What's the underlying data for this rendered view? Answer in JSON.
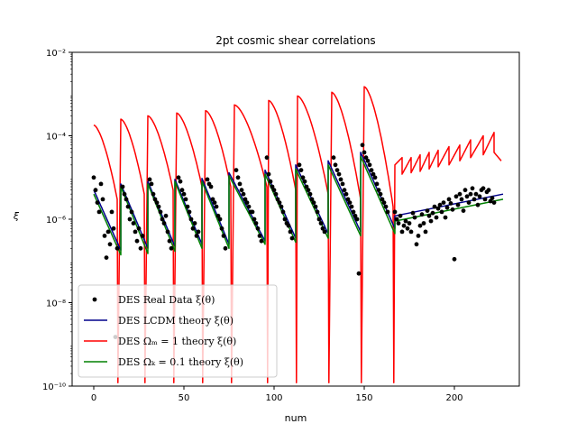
{
  "chart_data": {
    "type": "line",
    "title": "2pt cosmic shear correlations",
    "xlabel": "num",
    "ylabel": "ξ",
    "xlim": [
      -12,
      236
    ],
    "ylim": [
      1e-10,
      0.01
    ],
    "yscale": "log",
    "xticks": [
      0,
      50,
      100,
      150,
      200
    ],
    "yticks": [
      {
        "value": 1e-10,
        "label": "10⁻¹⁰"
      },
      {
        "value": 1e-08,
        "label": "10⁻⁸"
      },
      {
        "value": 1e-06,
        "label": "10⁻⁶"
      },
      {
        "value": 0.0001,
        "label": "10⁻⁴"
      },
      {
        "value": 0.01,
        "label": "10⁻²"
      }
    ],
    "legend_position": "lower-left",
    "grid": false,
    "colors": {
      "data": "#000000",
      "lcdm": "#00008b",
      "om1": "#ff0000",
      "ok": "#008000"
    },
    "legend": [
      {
        "key": "data",
        "label": "DES Real Data ξ(θ)",
        "marker": "dot"
      },
      {
        "key": "lcdm",
        "label": "DES LCDM theory ξ(θ)",
        "marker": "line"
      },
      {
        "key": "om1",
        "label": "DES Ωₘ = 1 theory ξ(θ)",
        "marker": "line"
      },
      {
        "key": "ok",
        "label": "DES Ωₖ = 0.1 theory ξ(θ)",
        "marker": "line"
      }
    ],
    "series": [
      {
        "key": "lcdm",
        "segments": [
          {
            "x": [
              0,
              15
            ],
            "y": [
              5e-06,
              1.8e-07
            ]
          },
          {
            "x": [
              15,
              30
            ],
            "y": [
              7e-06,
              2e-07
            ]
          },
          {
            "x": [
              30,
              45
            ],
            "y": [
              8e-06,
              2.2e-07
            ]
          },
          {
            "x": [
              45,
              60
            ],
            "y": [
              9e-06,
              2.5e-07
            ]
          },
          {
            "x": [
              60,
              75
            ],
            "y": [
              9.5e-06,
              2.5e-07
            ]
          },
          {
            "x": [
              75,
              95
            ],
            "y": [
              1.3e-05,
              3e-07
            ]
          },
          {
            "x": [
              95,
              112
            ],
            "y": [
              1.5e-05,
              3.5e-07
            ]
          },
          {
            "x": [
              112,
              130
            ],
            "y": [
              2e-05,
              4.5e-07
            ]
          },
          {
            "x": [
              130,
              148
            ],
            "y": [
              2.5e-05,
              5e-07
            ]
          },
          {
            "x": [
              148,
              167
            ],
            "y": [
              4e-05,
              6e-07
            ]
          },
          {
            "x": [
              167,
              227
            ],
            "y": [
              1.2e-06,
              4e-06
            ]
          }
        ]
      },
      {
        "key": "ok",
        "segments": [
          {
            "x": [
              0,
              15
            ],
            "y": [
              4e-06,
              1.4e-07
            ]
          },
          {
            "x": [
              15,
              30
            ],
            "y": [
              6e-06,
              1.5e-07
            ]
          },
          {
            "x": [
              30,
              45
            ],
            "y": [
              7e-06,
              1.7e-07
            ]
          },
          {
            "x": [
              45,
              60
            ],
            "y": [
              8e-06,
              2e-07
            ]
          },
          {
            "x": [
              60,
              75
            ],
            "y": [
              8e-06,
              2e-07
            ]
          },
          {
            "x": [
              75,
              95
            ],
            "y": [
              1.1e-05,
              2.5e-07
            ]
          },
          {
            "x": [
              95,
              112
            ],
            "y": [
              1.2e-05,
              2.8e-07
            ]
          },
          {
            "x": [
              112,
              130
            ],
            "y": [
              1.6e-05,
              3.5e-07
            ]
          },
          {
            "x": [
              130,
              148
            ],
            "y": [
              2e-05,
              4e-07
            ]
          },
          {
            "x": [
              148,
              167
            ],
            "y": [
              3.2e-05,
              4.5e-07
            ]
          },
          {
            "x": [
              167,
              227
            ],
            "y": [
              9e-07,
              3e-06
            ]
          }
        ]
      },
      {
        "key": "om1",
        "segments": [
          {
            "x": [
              0,
              13
            ],
            "y": [
              0.00018,
              3e-06
            ],
            "dip": 1.2e-10
          },
          {
            "x": [
              15,
              28
            ],
            "y": [
              0.00025,
              4e-06
            ],
            "dip": 1.2e-10
          },
          {
            "x": [
              30,
              44
            ],
            "y": [
              0.0003,
              5e-06
            ],
            "dip": 1.2e-10
          },
          {
            "x": [
              46,
              60
            ],
            "y": [
              0.00035,
              6e-06
            ],
            "dip": 1.2e-10
          },
          {
            "x": [
              62,
              76
            ],
            "y": [
              0.0004,
              6e-06
            ],
            "dip": 1.2e-10
          },
          {
            "x": [
              78,
              96
            ],
            "y": [
              0.00055,
              6e-06
            ],
            "dip": 1.2e-10
          },
          {
            "x": [
              97,
              112
            ],
            "y": [
              0.0007,
              5e-06
            ],
            "dip": 1.2e-10
          },
          {
            "x": [
              113,
              130
            ],
            "y": [
              0.0009,
              4e-06
            ],
            "dip": 1.2e-10
          },
          {
            "x": [
              132,
              148
            ],
            "y": [
              0.0011,
              3e-06
            ],
            "dip": 1.2e-10
          },
          {
            "x": [
              150,
              166
            ],
            "y": [
              0.0015,
              2e-06
            ],
            "dip": 1.2e-10
          },
          {
            "x": [
              167,
              171
            ],
            "y": [
              2e-05,
              3e-05
            ]
          },
          {
            "x": [
              171,
              176
            ],
            "y": [
              1.2e-05,
              3e-05
            ]
          },
          {
            "x": [
              176,
              181
            ],
            "y": [
              1.3e-05,
              3.5e-05
            ]
          },
          {
            "x": [
              181,
              186
            ],
            "y": [
              1.4e-05,
              4e-05
            ]
          },
          {
            "x": [
              186,
              191
            ],
            "y": [
              1.6e-05,
              4.5e-05
            ]
          },
          {
            "x": [
              191,
              197
            ],
            "y": [
              1.8e-05,
              5.5e-05
            ]
          },
          {
            "x": [
              197,
              203
            ],
            "y": [
              2e-05,
              6e-05
            ]
          },
          {
            "x": [
              203,
              209
            ],
            "y": [
              2.5e-05,
              8e-05
            ]
          },
          {
            "x": [
              209,
              216
            ],
            "y": [
              3e-05,
              0.0001
            ]
          },
          {
            "x": [
              216,
              222
            ],
            "y": [
              3.5e-05,
              0.00012
            ]
          },
          {
            "x": [
              222,
              226
            ],
            "y": [
              4e-05,
              2.5e-05
            ]
          }
        ]
      }
    ],
    "points": [
      [
        0,
        1e-05
      ],
      [
        1,
        5e-06
      ],
      [
        2,
        2.5e-06
      ],
      [
        3,
        1.5e-06
      ],
      [
        4,
        7e-06
      ],
      [
        5,
        3e-06
      ],
      [
        6,
        4e-07
      ],
      [
        7,
        1.2e-07
      ],
      [
        8,
        5e-07
      ],
      [
        9,
        2.5e-07
      ],
      [
        10,
        1.5e-06
      ],
      [
        11,
        6e-07
      ],
      [
        12,
        1.5e-09
      ],
      [
        13,
        2e-07
      ],
      [
        16,
        6e-06
      ],
      [
        17,
        4e-06
      ],
      [
        18,
        3e-06
      ],
      [
        19,
        2e-06
      ],
      [
        20,
        1e-06
      ],
      [
        21,
        1.5e-06
      ],
      [
        22,
        8e-07
      ],
      [
        23,
        5e-07
      ],
      [
        24,
        3e-07
      ],
      [
        25,
        6e-07
      ],
      [
        26,
        2e-07
      ],
      [
        27,
        4e-07
      ],
      [
        31,
        9e-06
      ],
      [
        32,
        7e-06
      ],
      [
        33,
        4e-06
      ],
      [
        34,
        3e-06
      ],
      [
        35,
        2.5e-06
      ],
      [
        36,
        2e-06
      ],
      [
        37,
        1.5e-06
      ],
      [
        38,
        1e-06
      ],
      [
        39,
        8e-07
      ],
      [
        40,
        1.2e-06
      ],
      [
        41,
        5e-07
      ],
      [
        42,
        3e-07
      ],
      [
        43,
        2e-07
      ],
      [
        47,
        1e-05
      ],
      [
        48,
        8e-06
      ],
      [
        49,
        5e-06
      ],
      [
        50,
        4e-06
      ],
      [
        51,
        3e-06
      ],
      [
        52,
        2e-06
      ],
      [
        53,
        1.5e-06
      ],
      [
        54,
        1e-06
      ],
      [
        55,
        6e-07
      ],
      [
        56,
        8e-07
      ],
      [
        57,
        4e-07
      ],
      [
        58,
        5e-07
      ],
      [
        63,
        9e-06
      ],
      [
        64,
        7e-06
      ],
      [
        65,
        6e-06
      ],
      [
        66,
        3e-06
      ],
      [
        67,
        2.5e-06
      ],
      [
        68,
        2e-06
      ],
      [
        69,
        1.2e-06
      ],
      [
        70,
        1e-06
      ],
      [
        71,
        6e-07
      ],
      [
        72,
        4e-07
      ],
      [
        73,
        2e-07
      ],
      [
        79,
        1.5e-05
      ],
      [
        80,
        1e-05
      ],
      [
        81,
        7e-06
      ],
      [
        82,
        5e-06
      ],
      [
        83,
        4e-06
      ],
      [
        84,
        3e-06
      ],
      [
        85,
        2.5e-06
      ],
      [
        86,
        2e-06
      ],
      [
        87,
        1.5e-06
      ],
      [
        88,
        1.5e-06
      ],
      [
        89,
        1e-06
      ],
      [
        90,
        8e-07
      ],
      [
        91,
        6e-07
      ],
      [
        92,
        4e-07
      ],
      [
        93,
        3e-07
      ],
      [
        96,
        3e-05
      ],
      [
        97,
        1.2e-05
      ],
      [
        98,
        8e-06
      ],
      [
        99,
        6e-06
      ],
      [
        100,
        5e-06
      ],
      [
        101,
        4e-06
      ],
      [
        102,
        3e-06
      ],
      [
        103,
        2.5e-06
      ],
      [
        104,
        2e-06
      ],
      [
        105,
        1.5e-06
      ],
      [
        106,
        1e-06
      ],
      [
        107,
        8e-07
      ],
      [
        108,
        7e-07
      ],
      [
        109,
        5e-07
      ],
      [
        110,
        3.5e-07
      ],
      [
        114,
        2e-05
      ],
      [
        115,
        1.5e-05
      ],
      [
        116,
        1e-05
      ],
      [
        117,
        8e-06
      ],
      [
        118,
        6e-06
      ],
      [
        119,
        5e-06
      ],
      [
        120,
        4e-06
      ],
      [
        121,
        3e-06
      ],
      [
        122,
        2.5e-06
      ],
      [
        123,
        2e-06
      ],
      [
        124,
        1.5e-06
      ],
      [
        125,
        1e-06
      ],
      [
        126,
        8e-07
      ],
      [
        127,
        6e-07
      ],
      [
        128,
        5e-07
      ],
      [
        133,
        3e-05
      ],
      [
        134,
        2e-05
      ],
      [
        135,
        1.5e-05
      ],
      [
        136,
        1.2e-05
      ],
      [
        137,
        9e-06
      ],
      [
        138,
        7e-06
      ],
      [
        139,
        5e-06
      ],
      [
        140,
        4e-06
      ],
      [
        141,
        3e-06
      ],
      [
        142,
        2.5e-06
      ],
      [
        143,
        2e-06
      ],
      [
        144,
        1.5e-06
      ],
      [
        145,
        1.2e-06
      ],
      [
        146,
        1e-06
      ],
      [
        147,
        5e-08
      ],
      [
        149,
        6e-05
      ],
      [
        150,
        4e-05
      ],
      [
        151,
        3e-05
      ],
      [
        152,
        2.5e-05
      ],
      [
        153,
        2e-05
      ],
      [
        154,
        1.5e-05
      ],
      [
        155,
        1.2e-05
      ],
      [
        156,
        1e-05
      ],
      [
        157,
        7e-06
      ],
      [
        158,
        5e-06
      ],
      [
        159,
        4e-06
      ],
      [
        160,
        3e-06
      ],
      [
        161,
        2.5e-06
      ],
      [
        162,
        2e-06
      ],
      [
        163,
        1.5e-06
      ],
      [
        167,
        1.5e-06
      ],
      [
        168,
        1e-06
      ],
      [
        169,
        8e-07
      ],
      [
        170,
        1.2e-06
      ],
      [
        171,
        5e-07
      ],
      [
        172,
        7e-07
      ],
      [
        173,
        9e-07
      ],
      [
        174,
        6e-07
      ],
      [
        175,
        8e-07
      ],
      [
        176,
        5e-07
      ],
      [
        177,
        1.4e-06
      ],
      [
        178,
        1.1e-06
      ],
      [
        179,
        2.5e-07
      ],
      [
        180,
        4e-07
      ],
      [
        181,
        7e-07
      ],
      [
        182,
        1.3e-06
      ],
      [
        183,
        8e-07
      ],
      [
        184,
        5e-07
      ],
      [
        185,
        1.6e-06
      ],
      [
        186,
        1.2e-06
      ],
      [
        187,
        9e-07
      ],
      [
        188,
        1.4e-06
      ],
      [
        189,
        2e-06
      ],
      [
        190,
        1.1e-06
      ],
      [
        191,
        1.8e-06
      ],
      [
        192,
        2.2e-06
      ],
      [
        193,
        1.5e-06
      ],
      [
        194,
        2.5e-06
      ],
      [
        195,
        1.1e-06
      ],
      [
        196,
        1.9e-06
      ],
      [
        197,
        3e-06
      ],
      [
        198,
        2.4e-06
      ],
      [
        199,
        1.7e-06
      ],
      [
        200,
        1.1e-07
      ],
      [
        201,
        3.5e-06
      ],
      [
        202,
        2.2e-06
      ],
      [
        203,
        4e-06
      ],
      [
        204,
        3e-06
      ],
      [
        205,
        1.6e-06
      ],
      [
        206,
        5e-06
      ],
      [
        207,
        3.5e-06
      ],
      [
        208,
        2.5e-06
      ],
      [
        209,
        4e-06
      ],
      [
        210,
        5.5e-06
      ],
      [
        211,
        3e-06
      ],
      [
        212,
        4e-06
      ],
      [
        213,
        2.2e-06
      ],
      [
        214,
        3.5e-06
      ],
      [
        215,
        5e-06
      ],
      [
        216,
        5.5e-06
      ],
      [
        217,
        3e-06
      ],
      [
        218,
        4.5e-06
      ],
      [
        219,
        5e-06
      ],
      [
        220,
        2.7e-06
      ],
      [
        221,
        3.2e-06
      ],
      [
        222,
        2.5e-06
      ]
    ]
  }
}
